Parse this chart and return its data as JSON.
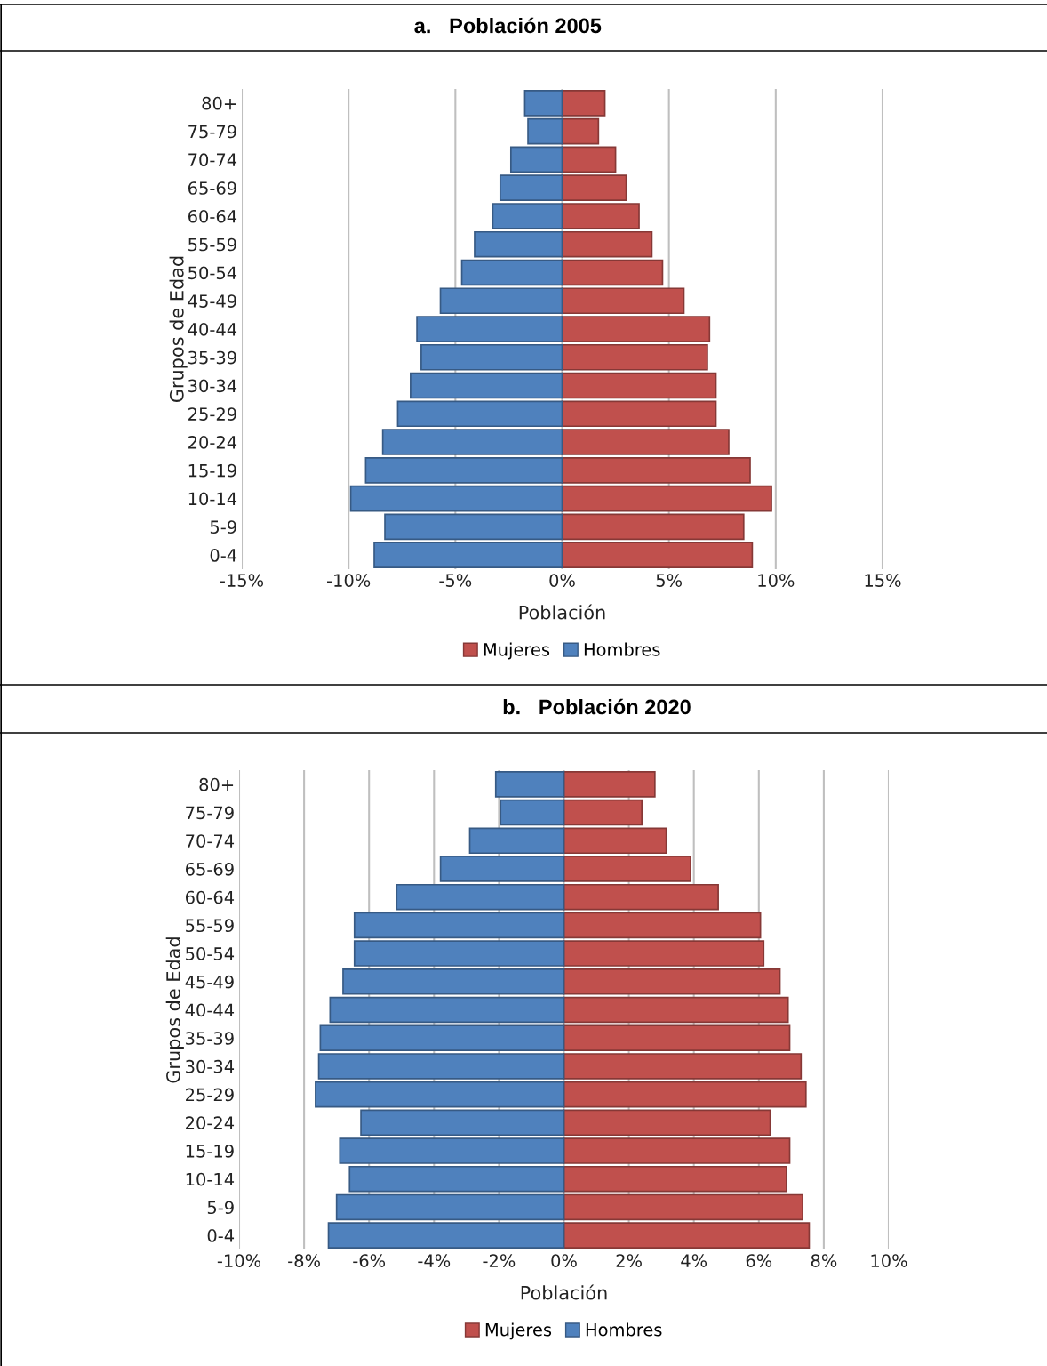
{
  "chart_data": [
    {
      "type": "bar",
      "orientation": "horizontal",
      "stacked": true,
      "title": "a.   Población 2005",
      "xlabel": "Población",
      "ylabel": "Grupos de Edad",
      "categories": [
        "80+",
        "75-79",
        "70-74",
        "65-69",
        "60-64",
        "55-59",
        "50-54",
        "45-49",
        "40-44",
        "35-39",
        "30-34",
        "25-29",
        "20-24",
        "15-19",
        "10-14",
        "5-9",
        "0-4"
      ],
      "series": [
        {
          "name": "Mujeres",
          "color": "#c0504d",
          "values": [
            2.0,
            1.7,
            2.5,
            3.0,
            3.6,
            4.2,
            4.7,
            5.7,
            6.9,
            6.8,
            7.2,
            7.2,
            7.8,
            8.8,
            9.8,
            8.5,
            8.9
          ]
        },
        {
          "name": "Hombres",
          "color": "#4f81bd",
          "values": [
            -1.75,
            -1.6,
            -2.4,
            -2.9,
            -3.25,
            -4.1,
            -4.7,
            -5.7,
            -6.8,
            -6.6,
            -7.1,
            -7.7,
            -8.4,
            -9.2,
            -9.9,
            -8.3,
            -8.8
          ]
        }
      ],
      "xlim": [
        -15,
        15
      ],
      "xticks": [
        {
          "value": -15,
          "label": "-15%"
        },
        {
          "value": -10,
          "label": "-10%"
        },
        {
          "value": -5,
          "label": "-5%"
        },
        {
          "value": 0,
          "label": "0%"
        },
        {
          "value": 5,
          "label": "5%"
        },
        {
          "value": 10,
          "label": "10%"
        },
        {
          "value": 15,
          "label": "15%"
        }
      ],
      "grid": "x",
      "legend": "bottom"
    },
    {
      "type": "bar",
      "orientation": "horizontal",
      "stacked": true,
      "title": "b.   Población 2020",
      "xlabel": "Población",
      "ylabel": "Grupos de Edad",
      "categories": [
        "80+",
        "75-79",
        "70-74",
        "65-69",
        "60-64",
        "55-59",
        "50-54",
        "45-49",
        "40-44",
        "35-39",
        "30-34",
        "25-29",
        "20-24",
        "15-19",
        "10-14",
        "5-9",
        "0-4"
      ],
      "series": [
        {
          "name": "Mujeres",
          "color": "#c0504d",
          "values": [
            2.8,
            2.4,
            3.15,
            3.9,
            4.75,
            6.05,
            6.15,
            6.65,
            6.9,
            6.95,
            7.3,
            7.45,
            6.35,
            6.95,
            6.85,
            7.35,
            7.55
          ]
        },
        {
          "name": "Hombres",
          "color": "#4f81bd",
          "values": [
            -2.1,
            -1.95,
            -2.9,
            -3.8,
            -5.15,
            -6.45,
            -6.45,
            -6.8,
            -7.2,
            -7.5,
            -7.55,
            -7.65,
            -6.25,
            -6.9,
            -6.6,
            -7.0,
            -7.25
          ]
        }
      ],
      "xlim": [
        -10,
        10
      ],
      "xticks": [
        {
          "value": -10,
          "label": "-10%"
        },
        {
          "value": -8,
          "label": "-8%"
        },
        {
          "value": -6,
          "label": "-6%"
        },
        {
          "value": -4,
          "label": "-4%"
        },
        {
          "value": -2,
          "label": "-2%"
        },
        {
          "value": 0,
          "label": "0%"
        },
        {
          "value": 2,
          "label": "2%"
        },
        {
          "value": 4,
          "label": "4%"
        },
        {
          "value": 6,
          "label": "6%"
        },
        {
          "value": 8,
          "label": "8%"
        },
        {
          "value": 10,
          "label": "10%"
        }
      ],
      "grid": "x",
      "legend": "bottom"
    }
  ]
}
